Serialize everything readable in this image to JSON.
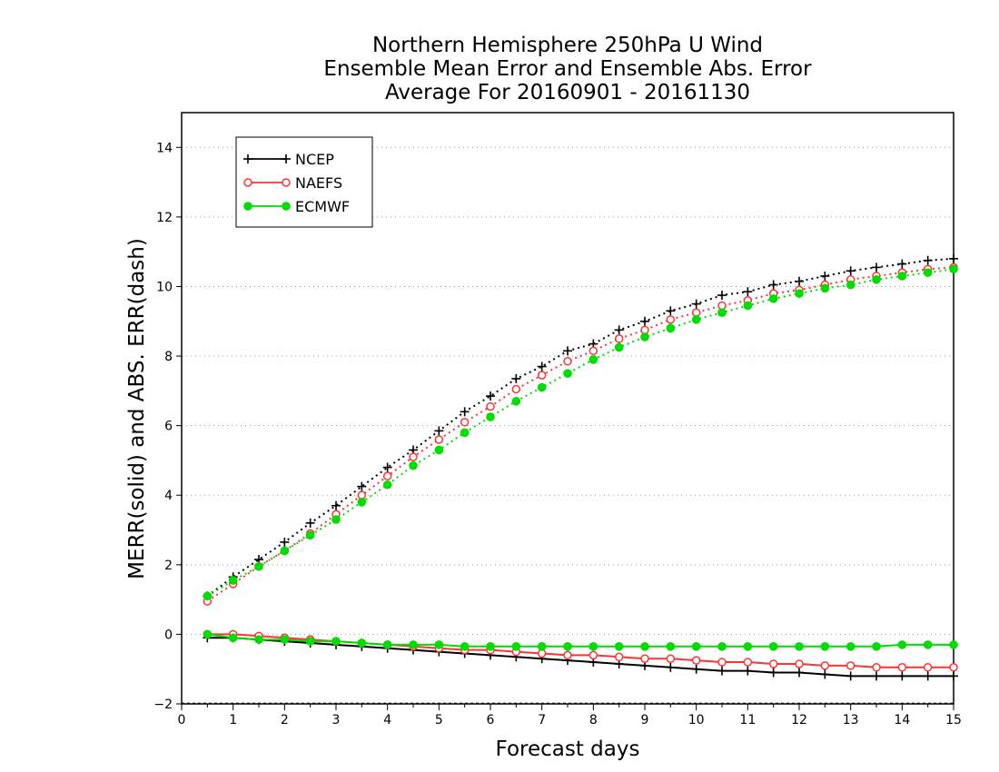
{
  "chart_data": {
    "type": "line",
    "title": [
      "Northern Hemisphere 250hPa U Wind",
      "Ensemble Mean Error and Ensemble Abs. Error",
      "Average For 20160901 - 20161130"
    ],
    "xlabel": "Forecast days",
    "ylabel": "MERR(solid) and ABS. ERR(dash)",
    "xlim": [
      0,
      15
    ],
    "ylim": [
      -2,
      15
    ],
    "xticks": [
      0,
      1,
      2,
      3,
      4,
      5,
      6,
      7,
      8,
      9,
      10,
      11,
      12,
      13,
      14,
      15
    ],
    "yticks": [
      -2,
      0,
      2,
      4,
      6,
      8,
      10,
      12,
      14
    ],
    "grid": "horizontal dotted",
    "legend_position": "top-left",
    "x": [
      0.5,
      1.0,
      1.5,
      2.0,
      2.5,
      3.0,
      3.5,
      4.0,
      4.5,
      5.0,
      5.5,
      6.0,
      6.5,
      7.0,
      7.5,
      8.0,
      8.5,
      9.0,
      9.5,
      10.0,
      10.5,
      11.0,
      11.5,
      12.0,
      12.5,
      13.0,
      13.5,
      14.0,
      14.5,
      15.0
    ],
    "series": [
      {
        "name": "NCEP",
        "color": "#000000",
        "marker": "plus",
        "merr": [
          -0.1,
          -0.1,
          -0.15,
          -0.2,
          -0.25,
          -0.3,
          -0.35,
          -0.4,
          -0.45,
          -0.5,
          -0.55,
          -0.6,
          -0.65,
          -0.7,
          -0.75,
          -0.8,
          -0.85,
          -0.9,
          -0.95,
          -1.0,
          -1.05,
          -1.05,
          -1.1,
          -1.1,
          -1.15,
          -1.2,
          -1.2,
          -1.2,
          -1.2,
          -1.2
        ],
        "abs_err": [
          1.1,
          1.65,
          2.15,
          2.65,
          3.2,
          3.7,
          4.25,
          4.8,
          5.3,
          5.85,
          6.4,
          6.85,
          7.35,
          7.7,
          8.15,
          8.35,
          8.75,
          9.0,
          9.3,
          9.5,
          9.75,
          9.85,
          10.05,
          10.15,
          10.3,
          10.45,
          10.55,
          10.65,
          10.75,
          10.8
        ]
      },
      {
        "name": "NAEFS",
        "color": "#ff3333",
        "marker": "open-circle",
        "merr": [
          0.0,
          0.0,
          -0.05,
          -0.1,
          -0.15,
          -0.2,
          -0.25,
          -0.3,
          -0.35,
          -0.4,
          -0.45,
          -0.45,
          -0.5,
          -0.55,
          -0.6,
          -0.6,
          -0.65,
          -0.7,
          -0.7,
          -0.75,
          -0.8,
          -0.8,
          -0.85,
          -0.85,
          -0.9,
          -0.9,
          -0.95,
          -0.95,
          -0.95,
          -0.95
        ],
        "abs_err": [
          0.95,
          1.45,
          1.95,
          2.4,
          2.9,
          3.45,
          4.0,
          4.55,
          5.1,
          5.6,
          6.1,
          6.55,
          7.05,
          7.45,
          7.85,
          8.15,
          8.5,
          8.75,
          9.05,
          9.25,
          9.45,
          9.6,
          9.8,
          9.9,
          10.05,
          10.2,
          10.3,
          10.4,
          10.5,
          10.55
        ]
      },
      {
        "name": "ECMWF",
        "color": "#00dd00",
        "marker": "filled-circle",
        "merr": [
          0.0,
          -0.1,
          -0.15,
          -0.15,
          -0.2,
          -0.2,
          -0.25,
          -0.3,
          -0.3,
          -0.3,
          -0.35,
          -0.35,
          -0.35,
          -0.35,
          -0.35,
          -0.35,
          -0.35,
          -0.35,
          -0.35,
          -0.35,
          -0.35,
          -0.35,
          -0.35,
          -0.35,
          -0.35,
          -0.35,
          -0.35,
          -0.3,
          -0.3,
          -0.3
        ],
        "abs_err": [
          1.1,
          1.55,
          1.95,
          2.4,
          2.85,
          3.3,
          3.8,
          4.3,
          4.85,
          5.3,
          5.8,
          6.25,
          6.7,
          7.1,
          7.5,
          7.9,
          8.25,
          8.55,
          8.8,
          9.05,
          9.25,
          9.45,
          9.65,
          9.8,
          9.95,
          10.05,
          10.2,
          10.3,
          10.4,
          10.5
        ]
      }
    ]
  }
}
